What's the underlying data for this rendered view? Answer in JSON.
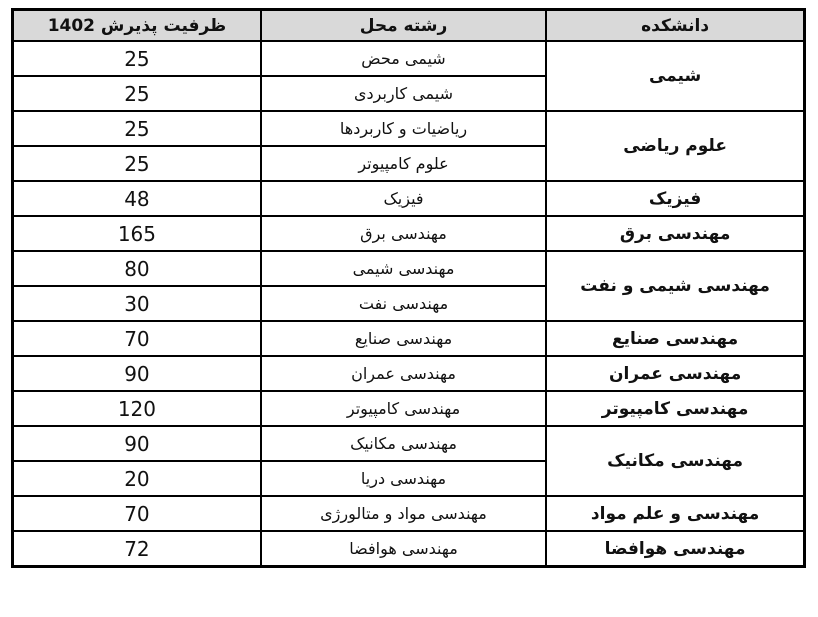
{
  "table": {
    "headers": {
      "faculty": "دانشکده",
      "major": "رشته محل",
      "capacity": "ظرفیت پذیرش 1402"
    },
    "groups": [
      {
        "faculty": "شیمی",
        "rows": [
          {
            "major": "شیمی محض",
            "capacity": "25"
          },
          {
            "major": "شیمی کاربردی",
            "capacity": "25"
          }
        ]
      },
      {
        "faculty": "علوم ریاضی",
        "rows": [
          {
            "major": "ریاضیات و کاربردها",
            "capacity": "25"
          },
          {
            "major": "علوم کامپیوتر",
            "capacity": "25"
          }
        ]
      },
      {
        "faculty": "فیزیک",
        "rows": [
          {
            "major": "فیزیک",
            "capacity": "48"
          }
        ]
      },
      {
        "faculty": "مهندسی برق",
        "rows": [
          {
            "major": "مهندسی برق",
            "capacity": "165"
          }
        ]
      },
      {
        "faculty": "مهندسی شیمی و نفت",
        "rows": [
          {
            "major": "مهندسی شیمی",
            "capacity": "80"
          },
          {
            "major": "مهندسی نفت",
            "capacity": "30"
          }
        ]
      },
      {
        "faculty": "مهندسی صنایع",
        "rows": [
          {
            "major": "مهندسی صنایع",
            "capacity": "70"
          }
        ]
      },
      {
        "faculty": "مهندسی عمران",
        "rows": [
          {
            "major": "مهندسی عمران",
            "capacity": "90"
          }
        ]
      },
      {
        "faculty": "مهندسی کامپیوتر",
        "rows": [
          {
            "major": "مهندسی کامپیوتر",
            "capacity": "120"
          }
        ]
      },
      {
        "faculty": "مهندسی مکانیک",
        "rows": [
          {
            "major": "مهندسی مکانیک",
            "capacity": "90"
          },
          {
            "major": "مهندسی دریا",
            "capacity": "20"
          }
        ]
      },
      {
        "faculty": "مهندسی و علم مواد",
        "rows": [
          {
            "major": "مهندسی مواد و متالورژی",
            "capacity": "70"
          }
        ]
      },
      {
        "faculty": "مهندسی هوافضا",
        "rows": [
          {
            "major": "مهندسی هوافضا",
            "capacity": "72"
          }
        ]
      }
    ],
    "colors": {
      "header_bg": "#d9d9d9",
      "border": "#000000",
      "page_bg": "#ffffff"
    }
  }
}
